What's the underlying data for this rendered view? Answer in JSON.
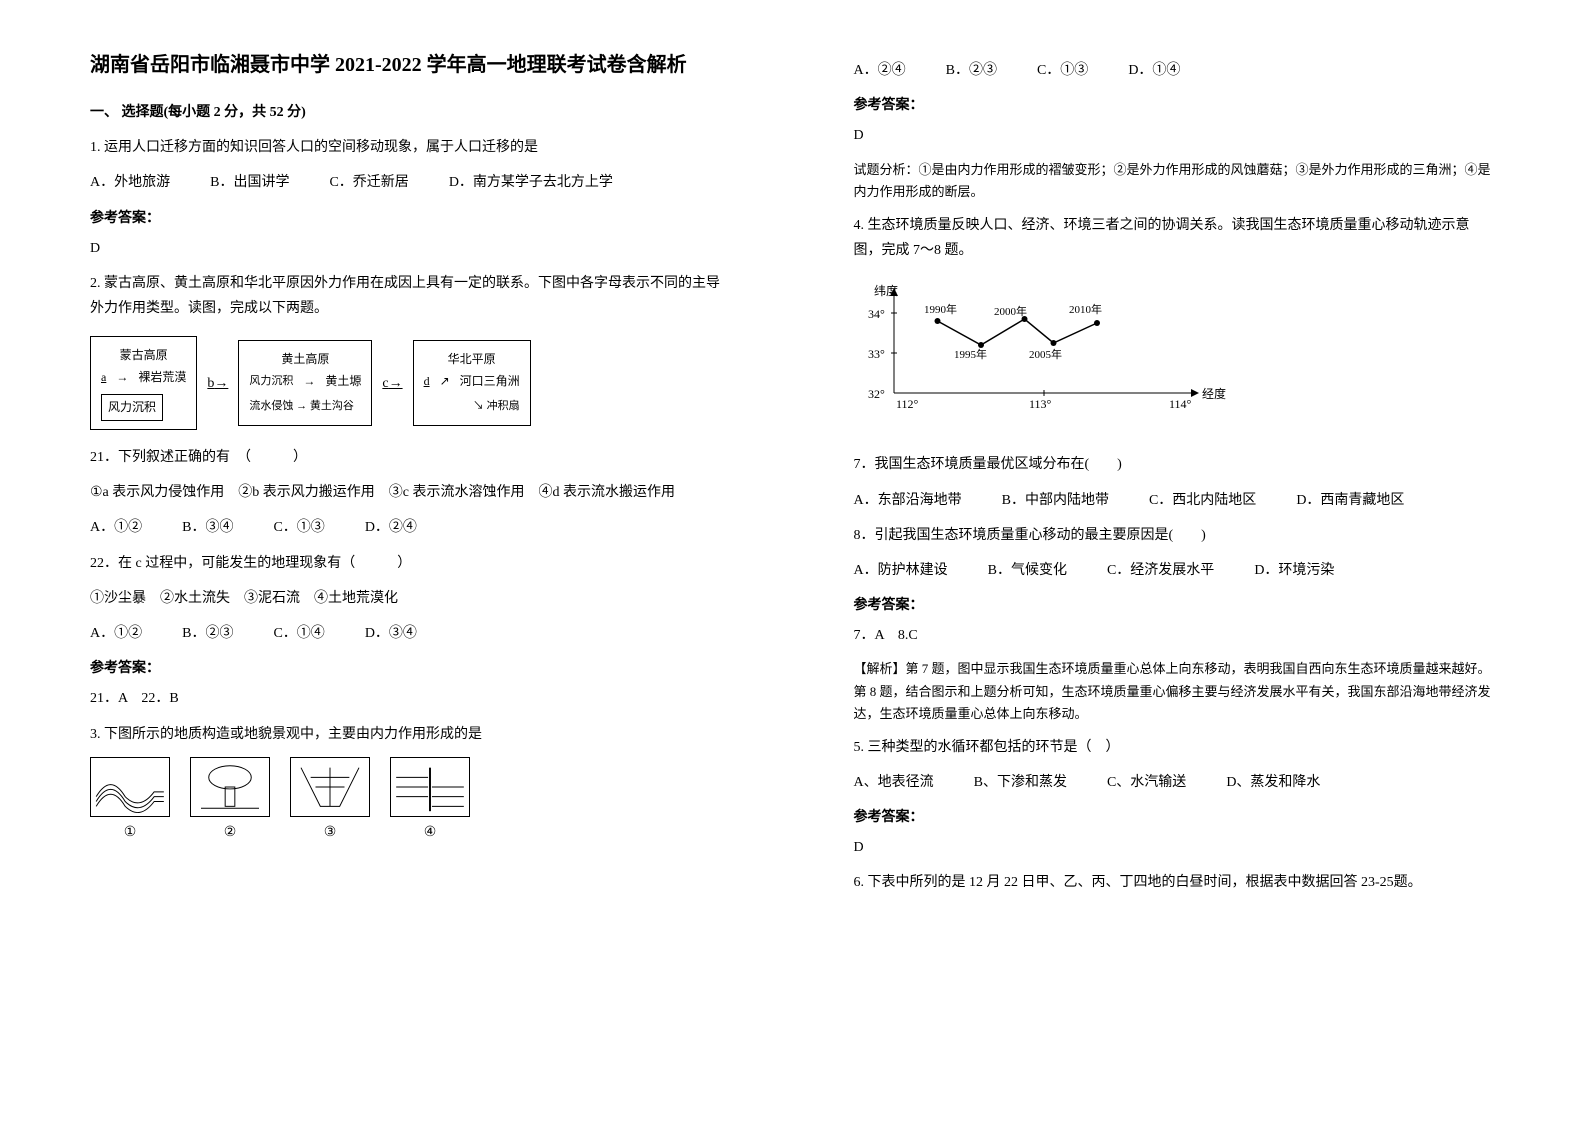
{
  "title": "湖南省岳阳市临湘聂市中学 2021-2022 学年高一地理联考试卷含解析",
  "section1": "一、 选择题(每小题 2 分，共 52 分)",
  "q1": {
    "stem": "1. 运用人口迁移方面的知识回答人口的空间移动现象，属于人口迁移的是",
    "optA": "A．外地旅游",
    "optB": "B．出国讲学",
    "optC": "C．乔迁新居",
    "optD": "D．南方某学子去北方上学",
    "answer": "D"
  },
  "q2": {
    "stem": "2. 蒙古高原、黄土高原和华北平原因外力作用在成因上具有一定的联系。下图中各字母表示不同的主导外力作用类型。读图，完成以下两题。"
  },
  "diagram": {
    "box1_title": "蒙古高原",
    "box1_a": "a",
    "box1_sub": "裸岩荒漠",
    "box1_bottom": "风力沉积",
    "b_label": "b",
    "box2_title": "黄土高原",
    "box2_top": "风力沉积",
    "box2_right": "黄土塬",
    "box2_bottom": "流水侵蚀",
    "box2_br": "黄土沟谷",
    "c_label": "c",
    "box3_title": "华北平原",
    "box3_d": "d",
    "box3_right1": "河口三角洲",
    "box3_right2": "冲积扇"
  },
  "q21": {
    "stem": "21．下列叙述正确的有　（　　　）",
    "line": "①a 表示风力侵蚀作用　②b 表示风力搬运作用　③c 表示流水溶蚀作用　④d 表示流水搬运作用",
    "optA": "A．①②",
    "optB": "B．③④",
    "optC": "C．①③",
    "optD": "D．②④"
  },
  "q22": {
    "stem": "22．在 c 过程中，可能发生的地理现象有（　　　）",
    "line": "①沙尘暴　②水土流失　③泥石流　④土地荒漠化",
    "optA": "A．①②",
    "optB": "B．②③",
    "optC": "C．①④",
    "optD": "D．③④"
  },
  "ans2122": "21．A　22．B",
  "q3": {
    "stem": "3. 下图所示的地质构造或地貌景观中，主要由内力作用形成的是",
    "n1": "①",
    "n2": "②",
    "n3": "③",
    "n4": "④"
  },
  "q3opts": {
    "optA": "A．②④",
    "optB": "B．②③",
    "optC": "C．①③",
    "optD": "D．①④"
  },
  "q3ans": "D",
  "q3explain": "试题分析：①是由内力作用形成的褶皱变形；②是外力作用形成的风蚀蘑菇；③是外力作用形成的三角洲；④是内力作用形成的断层。",
  "q4": {
    "stem": "4. 生态环境质量反映人口、经济、环境三者之间的协调关系。读我国生态环境质量重心移动轨迹示意图，完成 7～8 题。"
  },
  "chart": {
    "ylabel": "纬度",
    "y34": "34°",
    "y33": "33°",
    "y32": "32°",
    "x112": "112°",
    "x113": "113°",
    "x114": "114°",
    "xlabel": "经度",
    "p1990": "1990年",
    "p1995": "1995年",
    "p2000": "2000年",
    "p2005": "2005年",
    "p2010": "2010年",
    "points": [
      {
        "year": 1990,
        "lng": 112.3,
        "lat": 33.8
      },
      {
        "year": 1995,
        "lng": 112.6,
        "lat": 33.2
      },
      {
        "year": 2000,
        "lng": 112.9,
        "lat": 33.85
      },
      {
        "year": 2005,
        "lng": 113.1,
        "lat": 33.25
      },
      {
        "year": 2010,
        "lng": 113.4,
        "lat": 33.75
      }
    ],
    "axis_color": "#000",
    "line_color": "#000",
    "point_color": "#000",
    "bg": "#fff"
  },
  "q7": {
    "stem": "7．我国生态环境质量最优区域分布在(　　)",
    "optA": "A．东部沿海地带",
    "optB": "B．中部内陆地带",
    "optC": "C．西北内陆地区",
    "optD": "D．西南青藏地区"
  },
  "q8": {
    "stem": "8．引起我国生态环境质量重心移动的最主要原因是(　　)",
    "optA": "A．防护林建设",
    "optB": "B．气候变化",
    "optC": "C．经济发展水平",
    "optD": "D．环境污染"
  },
  "ans78": "7．A　8.C",
  "explain78": "【解析】第 7 题，图中显示我国生态环境质量重心总体上向东移动，表明我国自西向东生态环境质量越来越好。第 8 题，结合图示和上题分析可知，生态环境质量重心偏移主要与经济发展水平有关，我国东部沿海地带经济发达，生态环境质量重心总体上向东移动。",
  "q5": {
    "stem": "5. 三种类型的水循环都包括的环节是（　）",
    "optA": "A、地表径流",
    "optB": "B、下渗和蒸发",
    "optC": "C、水汽输送",
    "optD": "D、蒸发和降水",
    "answer": "D"
  },
  "q6": {
    "stem": "6. 下表中所列的是 12 月 22 日甲、乙、丙、丁四地的白昼时间，根据表中数据回答 23-25题。"
  },
  "labels": {
    "answer": "参考答案："
  }
}
